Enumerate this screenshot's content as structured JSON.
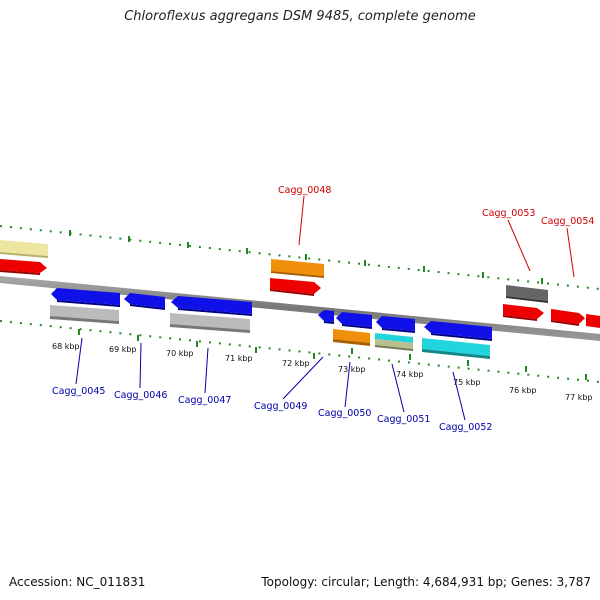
{
  "title": "Chloroflexus aggregans DSM 9485, complete genome",
  "accession": "Accession: NC_011831",
  "topology": "Topology: circular; Length: 4,684,931 bp; Genes: 3,787",
  "colors": {
    "red": "#ee0000",
    "orange": "#f0900a",
    "blue": "#1010e8",
    "cyan": "#22d4dc",
    "gray": "#bbbbbb",
    "darkgray": "#666666",
    "khaki": "#ece6a0",
    "olive": "#b8c090",
    "tick": "#228822",
    "backbone": "#888888"
  },
  "scale_labels": [
    "68 kbp",
    "69 kbp",
    "70 kbp",
    "71 kbp",
    "72 kbp",
    "73 kbp",
    "74 kbp",
    "75 kbp",
    "76 kbp",
    "77 kbp"
  ],
  "gene_labels": {
    "top": [
      "Cagg_0048",
      "Cagg_0053",
      "Cagg_0054"
    ],
    "bottom": [
      "Cagg_0045",
      "Cagg_0046",
      "Cagg_0047",
      "Cagg_0049",
      "Cagg_0050",
      "Cagg_0051",
      "Cagg_0052"
    ]
  }
}
